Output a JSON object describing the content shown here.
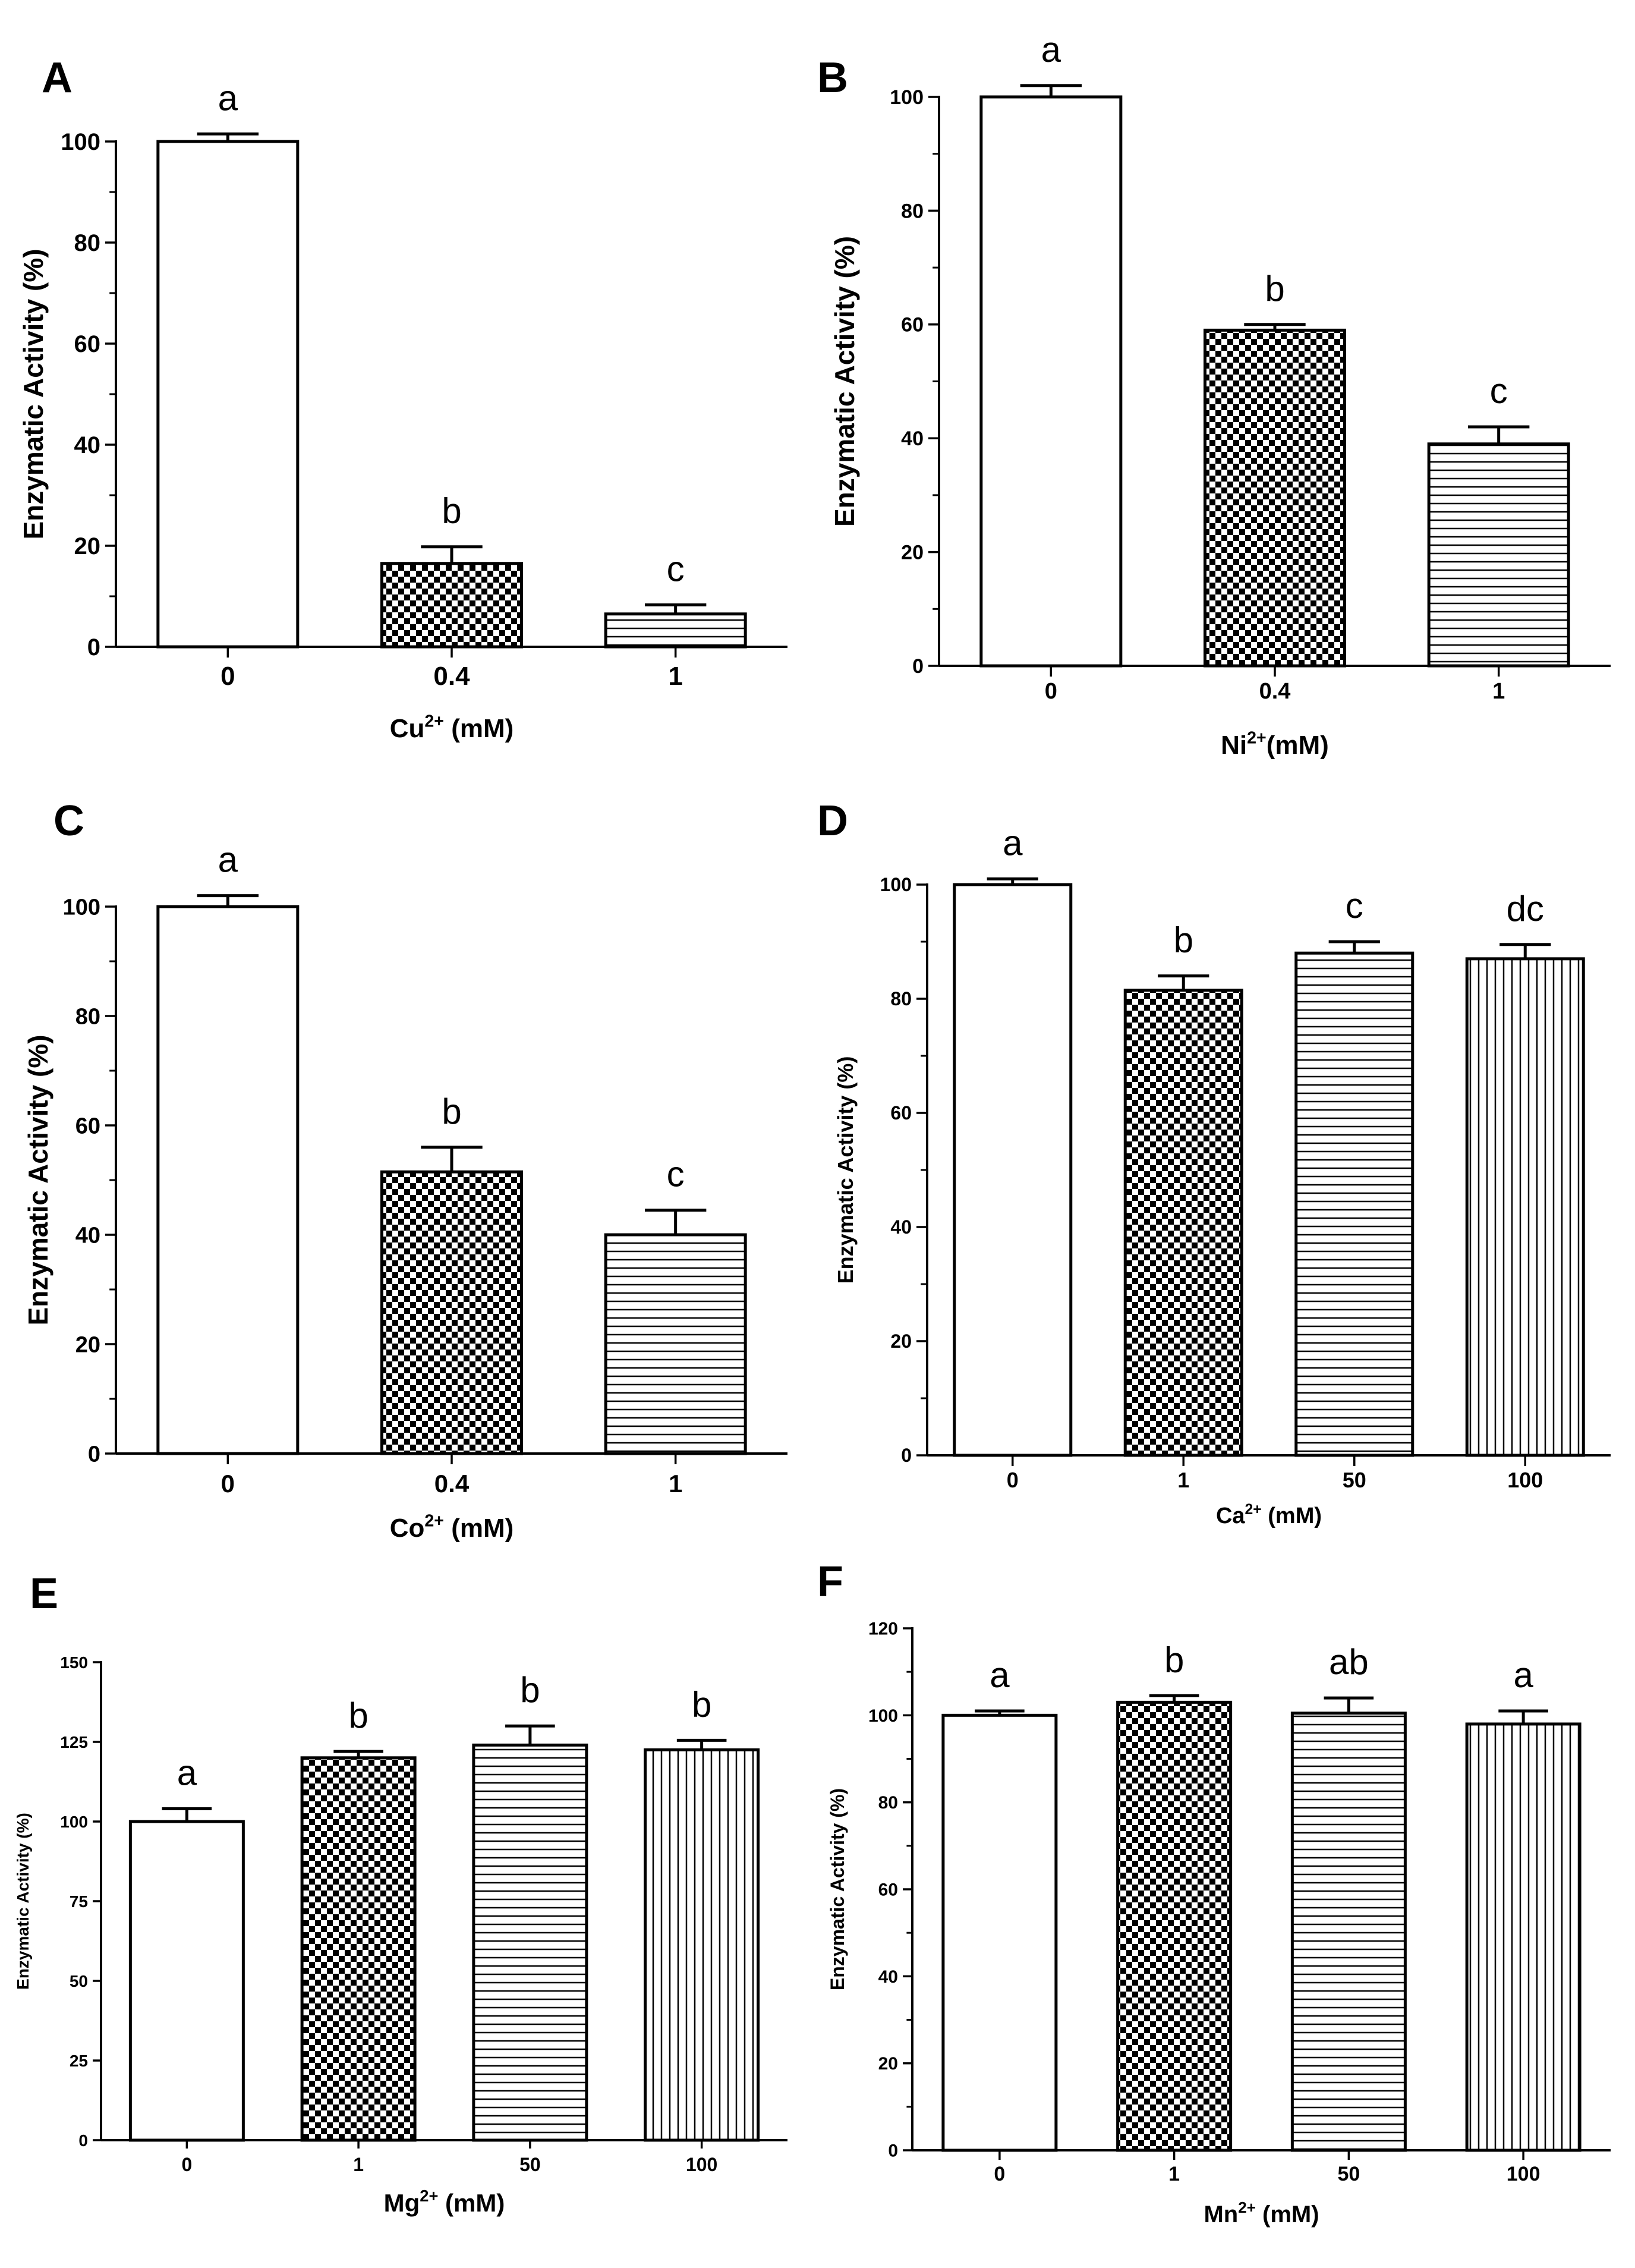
{
  "figure": {
    "panel_letters": [
      "A",
      "B",
      "C",
      "D",
      "E",
      "F"
    ]
  },
  "colors": {
    "ink": "#000000",
    "bar_fill": "#ffffff",
    "check_dark": "#000000",
    "background": "#ffffff"
  },
  "chart_data": [
    {
      "panel": "A",
      "type": "bar",
      "categories": [
        "0",
        "0.4",
        "1"
      ],
      "values": [
        100,
        16.5,
        6.5
      ],
      "errors": [
        1.5,
        3.3,
        1.8
      ],
      "patterns": [
        "none",
        "checker",
        "hlines"
      ],
      "significance": [
        "a",
        "b",
        "c"
      ],
      "ylabel": "Enzymatic Activity (%)",
      "xlabel": {
        "ion": "Cu",
        "charge": "2+",
        "unit": " (mM)"
      },
      "ylim": [
        0,
        100
      ],
      "yticks": [
        0,
        20,
        40,
        60,
        80,
        100
      ],
      "grid": false
    },
    {
      "panel": "B",
      "type": "bar",
      "categories": [
        "0",
        "0.4",
        "1"
      ],
      "values": [
        100,
        59,
        39
      ],
      "errors": [
        2,
        1,
        3
      ],
      "patterns": [
        "none",
        "checker",
        "hlines"
      ],
      "significance": [
        "a",
        "b",
        "c"
      ],
      "ylabel": "Enzymatic Activity (%)",
      "xlabel": {
        "ion": "Ni",
        "charge": "2+",
        "unit": "(mM)"
      },
      "ylim": [
        0,
        100
      ],
      "yticks": [
        0,
        20,
        40,
        60,
        80,
        100
      ],
      "grid": false
    },
    {
      "panel": "C",
      "type": "bar",
      "categories": [
        "0",
        "0.4",
        "1"
      ],
      "values": [
        100,
        51.5,
        40
      ],
      "errors": [
        2,
        4.5,
        4.5
      ],
      "patterns": [
        "none",
        "checker",
        "hlines"
      ],
      "significance": [
        "a",
        "b",
        "c"
      ],
      "ylabel": "Enzymatic Activity (%)",
      "xlabel": {
        "ion": "Co",
        "charge": "2+",
        "unit": " (mM)"
      },
      "ylim": [
        0,
        100
      ],
      "yticks": [
        0,
        20,
        40,
        60,
        80,
        100
      ],
      "grid": false
    },
    {
      "panel": "D",
      "type": "bar",
      "categories": [
        "0",
        "1",
        "50",
        "100"
      ],
      "values": [
        100,
        81.5,
        88,
        87
      ],
      "errors": [
        1,
        2.5,
        2,
        2.5
      ],
      "patterns": [
        "none",
        "checker",
        "hlines",
        "vlines"
      ],
      "significance": [
        "a",
        "b",
        "c",
        "dc"
      ],
      "ylabel": "Enzymatic Activity (%)",
      "xlabel": {
        "ion": "Ca",
        "charge": "2+",
        "unit": " (mM)"
      },
      "ylim": [
        0,
        100
      ],
      "yticks": [
        0,
        20,
        40,
        60,
        80,
        100
      ],
      "grid": false
    },
    {
      "panel": "E",
      "type": "bar",
      "categories": [
        "0",
        "1",
        "50",
        "100"
      ],
      "values": [
        100,
        120,
        124,
        122.5
      ],
      "errors": [
        4,
        2,
        6,
        3
      ],
      "patterns": [
        "none",
        "checker",
        "hlines",
        "vlines"
      ],
      "significance": [
        "a",
        "b",
        "b",
        "b"
      ],
      "ylabel": "Enzymatic Activity (%)",
      "xlabel": {
        "ion": "Mg",
        "charge": "2+",
        "unit": " (mM)"
      },
      "ylim": [
        0,
        150
      ],
      "yticks": [
        0,
        25,
        50,
        75,
        100,
        125,
        150
      ],
      "grid": false
    },
    {
      "panel": "F",
      "type": "bar",
      "categories": [
        "0",
        "1",
        "50",
        "100"
      ],
      "values": [
        100,
        103,
        100.5,
        98
      ],
      "errors": [
        1,
        1.5,
        3.5,
        3
      ],
      "patterns": [
        "none",
        "checker",
        "hlines",
        "vlines"
      ],
      "significance": [
        "a",
        "b",
        "ab",
        "a"
      ],
      "ylabel": "Enzymatic Activity (%)",
      "xlabel": {
        "ion": "Mn",
        "charge": "2+",
        "unit": " (mM)"
      },
      "ylim": [
        0,
        120
      ],
      "yticks": [
        0,
        20,
        40,
        60,
        80,
        100,
        120
      ],
      "grid": false
    }
  ]
}
